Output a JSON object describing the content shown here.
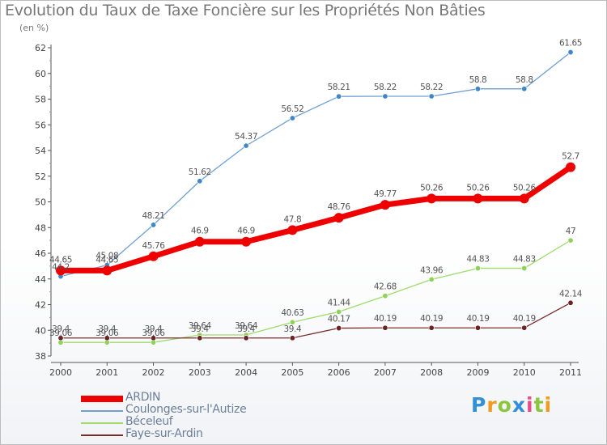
{
  "header": {
    "title": "Evolution du Taux de Taxe Foncière sur les Propriétés Non Bâties",
    "unit": "(en %)"
  },
  "logo": {
    "text": "Prox ti",
    "letters": [
      "P",
      "r",
      "o",
      "x",
      "i",
      "t",
      "i"
    ],
    "colors": [
      "#2f8fd8",
      "#f39a1f",
      "#8cc63f",
      "#2f8fd8",
      "#e84d8a",
      "#8cc63f",
      "#f39a1f"
    ]
  },
  "chart_data": {
    "type": "line",
    "title": "Evolution du Taux de Taxe Foncière sur les Propriétés Non Bâties",
    "ylabel": "(en %)",
    "xlabel": "",
    "x": [
      "2000",
      "2001",
      "2002",
      "2003",
      "2004",
      "2005",
      "2006",
      "2007",
      "2008",
      "2009",
      "2010",
      "2011"
    ],
    "ylim": [
      38,
      62
    ],
    "yticks": [
      38,
      40,
      42,
      44,
      46,
      48,
      50,
      52,
      54,
      56,
      58,
      60,
      62
    ],
    "grid": false,
    "legend_position": "bottom-left",
    "series": [
      {
        "name": "ARDIN",
        "color": "#ee0000",
        "width": 7,
        "values": [
          44.65,
          44.65,
          45.76,
          46.9,
          46.9,
          47.8,
          48.76,
          49.77,
          50.26,
          50.26,
          50.26,
          52.7
        ],
        "labels": [
          "44.65",
          "44.65",
          "45.76",
          "46.9",
          "46.9",
          "47.8",
          "48.76",
          "49.77",
          "50.26",
          "50.26",
          "50.26",
          "52.7"
        ]
      },
      {
        "name": "Coulonges-sur-l'Autize",
        "color": "#6fa0d0",
        "width": 1.3,
        "values": [
          44.2,
          45.08,
          48.21,
          51.62,
          54.37,
          56.52,
          58.21,
          58.22,
          58.22,
          58.8,
          58.8,
          61.65
        ],
        "labels": [
          "44.2",
          "45.08",
          "48.21",
          "51.62",
          "54.37",
          "56.52",
          "58.21",
          "58.22",
          "58.22",
          "58.8",
          "58.8",
          "61.65"
        ]
      },
      {
        "name": "Béceleuf",
        "color": "#9edb6a",
        "width": 1.3,
        "values": [
          39.06,
          39.06,
          39.06,
          39.64,
          39.64,
          40.63,
          41.44,
          42.68,
          43.96,
          44.83,
          44.83,
          47
        ],
        "labels": [
          "39.06",
          "39.06",
          "39.06",
          "39.64",
          "39.64",
          "40.63",
          "41.44",
          "42.68",
          "43.96",
          "44.83",
          "44.83",
          "47"
        ]
      },
      {
        "name": "Faye-sur-Ardin",
        "color": "#7a2c2c",
        "width": 1.3,
        "values": [
          39.4,
          39.4,
          39.4,
          39.4,
          39.4,
          39.4,
          40.17,
          40.19,
          40.19,
          40.19,
          40.19,
          42.14
        ],
        "labels": [
          "39.4",
          "39.4",
          "39.4",
          "39.4",
          "39.4",
          "39.4",
          "40.17",
          "40.19",
          "40.19",
          "40.19",
          "40.19",
          "42.14"
        ]
      }
    ]
  }
}
